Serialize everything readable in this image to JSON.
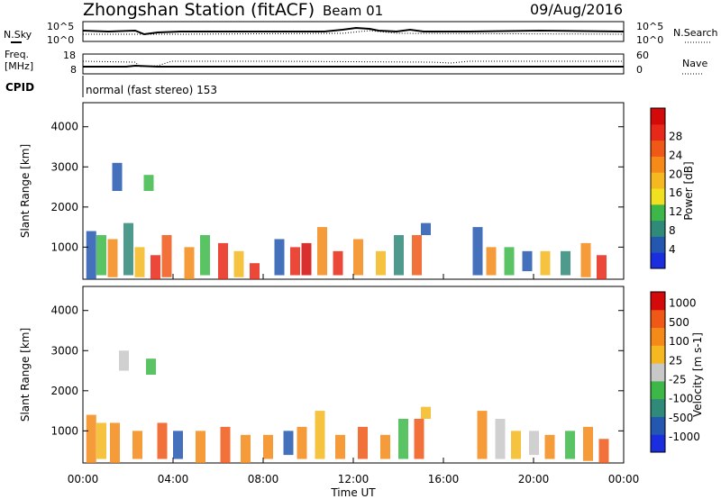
{
  "header": {
    "station": "Zhongshan Station (fitACF)",
    "beam": "Beam 01",
    "date": "09/Aug/2016"
  },
  "top_panel": {
    "left_label": "N.Sky",
    "right_label": "N.Search",
    "left_ticks": [
      "10^5",
      "10^0"
    ],
    "right_ticks": [
      "10^5",
      "10^0"
    ]
  },
  "freq_panel": {
    "left_label_1": "Freq.",
    "left_label_2": "[MHz]",
    "right_label": "Nave",
    "left_ticks": [
      "18",
      "8"
    ],
    "right_ticks": [
      "60",
      "0"
    ]
  },
  "cpid_panel": {
    "label": "CPID",
    "program": "normal (fast stereo) 153"
  },
  "chart_data": [
    {
      "type": "heatmap",
      "name": "power",
      "ylabel": "Slant Range [km]",
      "xlabel": "",
      "yticks": [
        "1000",
        "2000",
        "3000",
        "4000"
      ],
      "ylim": [
        200,
        4600
      ],
      "colorbar": {
        "label": "Power [dB]",
        "ticks": [
          "4",
          "8",
          "12",
          "16",
          "20",
          "24",
          "28"
        ],
        "colors": [
          "#1a2ee0",
          "#2457b0",
          "#2f8a7a",
          "#3db848",
          "#f0e020",
          "#f5b820",
          "#f58a18",
          "#f05818",
          "#e82818",
          "#d40a0a"
        ]
      },
      "cells": [
        {
          "t": 0.15,
          "r0": 200,
          "r1": 1400,
          "c": "#2457b0"
        },
        {
          "t": 0.6,
          "r0": 300,
          "r1": 1300,
          "c": "#3db848"
        },
        {
          "t": 1.1,
          "r0": 250,
          "r1": 1200,
          "c": "#f58a18"
        },
        {
          "t": 1.3,
          "r0": 2400,
          "r1": 3100,
          "c": "#2457b0"
        },
        {
          "t": 1.8,
          "r0": 300,
          "r1": 1600,
          "c": "#2f8a7a"
        },
        {
          "t": 2.3,
          "r0": 250,
          "r1": 1000,
          "c": "#f5b820"
        },
        {
          "t": 2.7,
          "r0": 2400,
          "r1": 2800,
          "c": "#3db848"
        },
        {
          "t": 3.0,
          "r0": 200,
          "r1": 800,
          "c": "#e82818"
        },
        {
          "t": 3.5,
          "r0": 250,
          "r1": 1300,
          "c": "#f05818"
        },
        {
          "t": 4.5,
          "r0": 200,
          "r1": 1000,
          "c": "#f58a18"
        },
        {
          "t": 5.2,
          "r0": 300,
          "r1": 1300,
          "c": "#3db848"
        },
        {
          "t": 6.0,
          "r0": 200,
          "r1": 1100,
          "c": "#e82818"
        },
        {
          "t": 6.7,
          "r0": 250,
          "r1": 900,
          "c": "#f5b820"
        },
        {
          "t": 7.4,
          "r0": 200,
          "r1": 600,
          "c": "#e82818"
        },
        {
          "t": 8.5,
          "r0": 300,
          "r1": 1200,
          "c": "#2457b0"
        },
        {
          "t": 9.2,
          "r0": 300,
          "r1": 1000,
          "c": "#e82818"
        },
        {
          "t": 9.7,
          "r0": 300,
          "r1": 1100,
          "c": "#d40a0a"
        },
        {
          "t": 10.4,
          "r0": 300,
          "r1": 1500,
          "c": "#f58a18"
        },
        {
          "t": 11.1,
          "r0": 300,
          "r1": 900,
          "c": "#e82818"
        },
        {
          "t": 12.0,
          "r0": 300,
          "r1": 1200,
          "c": "#f58a18"
        },
        {
          "t": 13.0,
          "r0": 300,
          "r1": 900,
          "c": "#f5b820"
        },
        {
          "t": 13.8,
          "r0": 300,
          "r1": 1300,
          "c": "#2f8a7a"
        },
        {
          "t": 14.6,
          "r0": 300,
          "r1": 1300,
          "c": "#f05818"
        },
        {
          "t": 15.0,
          "r0": 1300,
          "r1": 1600,
          "c": "#2457b0"
        },
        {
          "t": 17.3,
          "r0": 300,
          "r1": 1500,
          "c": "#2457b0"
        },
        {
          "t": 17.9,
          "r0": 300,
          "r1": 1000,
          "c": "#f58a18"
        },
        {
          "t": 18.7,
          "r0": 300,
          "r1": 1000,
          "c": "#3db848"
        },
        {
          "t": 19.5,
          "r0": 400,
          "r1": 900,
          "c": "#2457b0"
        },
        {
          "t": 20.3,
          "r0": 300,
          "r1": 900,
          "c": "#f5b820"
        },
        {
          "t": 21.2,
          "r0": 300,
          "r1": 900,
          "c": "#2f8a7a"
        },
        {
          "t": 22.1,
          "r0": 250,
          "r1": 1100,
          "c": "#f58a18"
        },
        {
          "t": 22.8,
          "r0": 200,
          "r1": 800,
          "c": "#e82818"
        }
      ]
    },
    {
      "type": "heatmap",
      "name": "velocity",
      "ylabel": "Slant Range [km]",
      "xlabel": "Time UT",
      "xticks": [
        "00:00",
        "04:00",
        "08:00",
        "12:00",
        "16:00",
        "20:00",
        "00:00"
      ],
      "yticks": [
        "1000",
        "2000",
        "3000",
        "4000"
      ],
      "ylim": [
        200,
        4600
      ],
      "colorbar": {
        "label": "Velocity [m s-1]",
        "ticks": [
          "1000",
          "500",
          "100",
          "25",
          "-25",
          "-100",
          "-500",
          "-1000"
        ],
        "colors": [
          "#1a2ee0",
          "#2457b0",
          "#2f8a7a",
          "#3db848",
          "#c8c8c8",
          "#f5b820",
          "#f58a18",
          "#f05818",
          "#d40a0a"
        ]
      },
      "cells": [
        {
          "t": 0.15,
          "r0": 200,
          "r1": 1400,
          "c": "#f58a18"
        },
        {
          "t": 0.6,
          "r0": 300,
          "r1": 1200,
          "c": "#f5b820"
        },
        {
          "t": 1.2,
          "r0": 200,
          "r1": 1200,
          "c": "#f58a18"
        },
        {
          "t": 1.6,
          "r0": 2500,
          "r1": 3000,
          "c": "#c8c8c8"
        },
        {
          "t": 2.2,
          "r0": 300,
          "r1": 1000,
          "c": "#f58a18"
        },
        {
          "t": 2.8,
          "r0": 2400,
          "r1": 2800,
          "c": "#3db848"
        },
        {
          "t": 3.3,
          "r0": 300,
          "r1": 1200,
          "c": "#f05818"
        },
        {
          "t": 4.0,
          "r0": 300,
          "r1": 1000,
          "c": "#2457b0"
        },
        {
          "t": 5.0,
          "r0": 200,
          "r1": 1000,
          "c": "#f58a18"
        },
        {
          "t": 6.1,
          "r0": 200,
          "r1": 1100,
          "c": "#f05818"
        },
        {
          "t": 7.0,
          "r0": 200,
          "r1": 900,
          "c": "#f58a18"
        },
        {
          "t": 8.0,
          "r0": 300,
          "r1": 900,
          "c": "#f58a18"
        },
        {
          "t": 8.9,
          "r0": 400,
          "r1": 1000,
          "c": "#2457b0"
        },
        {
          "t": 9.5,
          "r0": 300,
          "r1": 1100,
          "c": "#f58a18"
        },
        {
          "t": 10.3,
          "r0": 300,
          "r1": 1500,
          "c": "#f5b820"
        },
        {
          "t": 11.2,
          "r0": 300,
          "r1": 900,
          "c": "#f58a18"
        },
        {
          "t": 12.2,
          "r0": 300,
          "r1": 1100,
          "c": "#f05818"
        },
        {
          "t": 13.2,
          "r0": 300,
          "r1": 900,
          "c": "#f58a18"
        },
        {
          "t": 14.0,
          "r0": 300,
          "r1": 1300,
          "c": "#3db848"
        },
        {
          "t": 14.7,
          "r0": 300,
          "r1": 1300,
          "c": "#f05818"
        },
        {
          "t": 15.0,
          "r0": 1300,
          "r1": 1600,
          "c": "#f5b820"
        },
        {
          "t": 17.5,
          "r0": 300,
          "r1": 1500,
          "c": "#f58a18"
        },
        {
          "t": 18.3,
          "r0": 300,
          "r1": 1300,
          "c": "#c8c8c8"
        },
        {
          "t": 19.0,
          "r0": 300,
          "r1": 1000,
          "c": "#f5b820"
        },
        {
          "t": 19.8,
          "r0": 400,
          "r1": 1000,
          "c": "#c8c8c8"
        },
        {
          "t": 20.5,
          "r0": 300,
          "r1": 900,
          "c": "#f58a18"
        },
        {
          "t": 21.4,
          "r0": 300,
          "r1": 1000,
          "c": "#3db848"
        },
        {
          "t": 22.2,
          "r0": 250,
          "r1": 1100,
          "c": "#f58a18"
        },
        {
          "t": 22.9,
          "r0": 200,
          "r1": 800,
          "c": "#f05818"
        }
      ]
    }
  ]
}
